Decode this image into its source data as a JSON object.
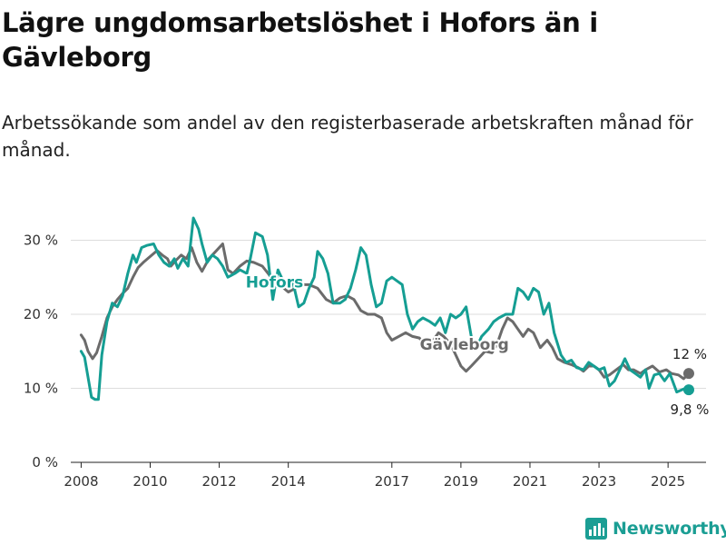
{
  "title": "Lägre ungdomsarbetslöshet i Hofors än i Gävleborg",
  "subtitle": "Arbetssökande som andel av den registerbaserade arbetskraften månad för månad.",
  "brand": {
    "name": "Newsworthy",
    "color": "#1b9e94",
    "icon": "bar-chart-logo-icon"
  },
  "chart_data": {
    "type": "line",
    "title": "Lägre ungdomsarbetslöshet i Hofors än i Gävleborg",
    "subtitle": "Arbetssökande som andel av den registerbaserade arbetskraften månad för månad.",
    "xlabel": "",
    "ylabel": "",
    "xlim": [
      2007.7,
      2026.1
    ],
    "ylim": [
      0,
      33
    ],
    "x_ticks": [
      {
        "value": 2008,
        "label": "2008"
      },
      {
        "value": 2010,
        "label": "2010"
      },
      {
        "value": 2012,
        "label": "2012"
      },
      {
        "value": 2014,
        "label": "2014"
      },
      {
        "value": 2017,
        "label": "2017"
      },
      {
        "value": 2019,
        "label": "2019"
      },
      {
        "value": 2021,
        "label": "2021"
      },
      {
        "value": 2023,
        "label": "2023"
      },
      {
        "value": 2025,
        "label": "2025"
      }
    ],
    "y_ticks": [
      {
        "value": 0,
        "label": "0 %"
      },
      {
        "value": 10,
        "label": "10 %"
      },
      {
        "value": 20,
        "label": "20 %"
      },
      {
        "value": 30,
        "label": "30 %"
      }
    ],
    "grid": true,
    "series": [
      {
        "name": "Gävleborg",
        "color": "#6b6b6b",
        "end_label": "12 %",
        "points": [
          [
            2008.0,
            17.2
          ],
          [
            2008.1,
            16.5
          ],
          [
            2008.2,
            15.0
          ],
          [
            2008.33,
            14.0
          ],
          [
            2008.45,
            14.8
          ],
          [
            2008.6,
            17.0
          ],
          [
            2008.75,
            19.5
          ],
          [
            2008.9,
            21.0
          ],
          [
            2009.05,
            22.0
          ],
          [
            2009.2,
            22.8
          ],
          [
            2009.35,
            23.5
          ],
          [
            2009.5,
            25.0
          ],
          [
            2009.65,
            26.3
          ],
          [
            2009.8,
            27.0
          ],
          [
            2010.0,
            27.8
          ],
          [
            2010.2,
            28.6
          ],
          [
            2010.35,
            28.0
          ],
          [
            2010.5,
            27.5
          ],
          [
            2010.6,
            26.5
          ],
          [
            2010.75,
            27.3
          ],
          [
            2010.9,
            28.0
          ],
          [
            2011.05,
            27.5
          ],
          [
            2011.2,
            29.0
          ],
          [
            2011.35,
            27.0
          ],
          [
            2011.5,
            25.8
          ],
          [
            2011.7,
            27.5
          ],
          [
            2011.9,
            28.5
          ],
          [
            2012.1,
            29.5
          ],
          [
            2012.25,
            26.0
          ],
          [
            2012.4,
            25.5
          ],
          [
            2012.6,
            26.5
          ],
          [
            2012.8,
            27.2
          ],
          [
            2013.0,
            27.0
          ],
          [
            2013.25,
            26.5
          ],
          [
            2013.5,
            25.0
          ],
          [
            2013.75,
            24.0
          ],
          [
            2014.0,
            23.0
          ],
          [
            2014.2,
            23.5
          ],
          [
            2014.4,
            24.0
          ],
          [
            2014.6,
            24.0
          ],
          [
            2014.85,
            23.5
          ],
          [
            2015.1,
            22.0
          ],
          [
            2015.3,
            21.5
          ],
          [
            2015.5,
            22.2
          ],
          [
            2015.7,
            22.5
          ],
          [
            2015.9,
            22.0
          ],
          [
            2016.1,
            20.5
          ],
          [
            2016.3,
            20.0
          ],
          [
            2016.5,
            20.0
          ],
          [
            2016.7,
            19.5
          ],
          [
            2016.85,
            17.5
          ],
          [
            2017.0,
            16.5
          ],
          [
            2017.2,
            17.0
          ],
          [
            2017.4,
            17.5
          ],
          [
            2017.6,
            17.0
          ],
          [
            2017.8,
            16.8
          ],
          [
            2018.0,
            15.5
          ],
          [
            2018.2,
            16.5
          ],
          [
            2018.35,
            17.5
          ],
          [
            2018.5,
            17.0
          ],
          [
            2018.7,
            16.0
          ],
          [
            2018.85,
            14.5
          ],
          [
            2019.0,
            13.0
          ],
          [
            2019.15,
            12.3
          ],
          [
            2019.3,
            13.0
          ],
          [
            2019.5,
            14.0
          ],
          [
            2019.7,
            15.0
          ],
          [
            2019.9,
            14.8
          ],
          [
            2020.05,
            16.0
          ],
          [
            2020.2,
            18.0
          ],
          [
            2020.35,
            19.5
          ],
          [
            2020.5,
            19.0
          ],
          [
            2020.65,
            18.0
          ],
          [
            2020.8,
            17.0
          ],
          [
            2020.95,
            18.0
          ],
          [
            2021.1,
            17.5
          ],
          [
            2021.3,
            15.5
          ],
          [
            2021.5,
            16.5
          ],
          [
            2021.65,
            15.5
          ],
          [
            2021.8,
            14.0
          ],
          [
            2022.0,
            13.5
          ],
          [
            2022.2,
            13.2
          ],
          [
            2022.4,
            12.8
          ],
          [
            2022.55,
            12.3
          ],
          [
            2022.7,
            13.0
          ],
          [
            2022.85,
            13.0
          ],
          [
            2023.0,
            12.5
          ],
          [
            2023.15,
            11.5
          ],
          [
            2023.3,
            11.8
          ],
          [
            2023.5,
            12.5
          ],
          [
            2023.7,
            13.2
          ],
          [
            2023.85,
            12.5
          ],
          [
            2024.0,
            12.5
          ],
          [
            2024.2,
            12.0
          ],
          [
            2024.35,
            12.5
          ],
          [
            2024.55,
            13.0
          ],
          [
            2024.75,
            12.2
          ],
          [
            2024.95,
            12.5
          ],
          [
            2025.1,
            12.0
          ],
          [
            2025.3,
            11.8
          ],
          [
            2025.45,
            11.3
          ],
          [
            2025.6,
            12.0
          ]
        ]
      },
      {
        "name": "Hofors",
        "color": "#159e93",
        "end_label": "9,8 %",
        "points": [
          [
            2008.0,
            15.0
          ],
          [
            2008.1,
            14.2
          ],
          [
            2008.2,
            11.5
          ],
          [
            2008.3,
            8.8
          ],
          [
            2008.4,
            8.5
          ],
          [
            2008.5,
            8.5
          ],
          [
            2008.6,
            14.5
          ],
          [
            2008.75,
            19.0
          ],
          [
            2008.9,
            21.5
          ],
          [
            2009.05,
            21.0
          ],
          [
            2009.2,
            22.5
          ],
          [
            2009.35,
            25.5
          ],
          [
            2009.5,
            28.0
          ],
          [
            2009.6,
            27.0
          ],
          [
            2009.75,
            29.0
          ],
          [
            2009.9,
            29.3
          ],
          [
            2010.1,
            29.5
          ],
          [
            2010.25,
            28.0
          ],
          [
            2010.4,
            27.0
          ],
          [
            2010.55,
            26.5
          ],
          [
            2010.7,
            27.5
          ],
          [
            2010.8,
            26.2
          ],
          [
            2010.95,
            27.5
          ],
          [
            2011.1,
            26.5
          ],
          [
            2011.25,
            33.0
          ],
          [
            2011.4,
            31.5
          ],
          [
            2011.5,
            29.5
          ],
          [
            2011.65,
            27.0
          ],
          [
            2011.8,
            28.0
          ],
          [
            2011.95,
            27.5
          ],
          [
            2012.1,
            26.5
          ],
          [
            2012.25,
            25.0
          ],
          [
            2012.45,
            25.5
          ],
          [
            2012.6,
            26.0
          ],
          [
            2012.8,
            25.5
          ],
          [
            2012.9,
            27.5
          ],
          [
            2013.05,
            31.0
          ],
          [
            2013.25,
            30.5
          ],
          [
            2013.4,
            28.0
          ],
          [
            2013.55,
            22.0
          ],
          [
            2013.7,
            26.0
          ],
          [
            2013.85,
            24.5
          ],
          [
            2014.0,
            24.5
          ],
          [
            2014.15,
            24.0
          ],
          [
            2014.3,
            21.0
          ],
          [
            2014.45,
            21.5
          ],
          [
            2014.6,
            23.5
          ],
          [
            2014.75,
            25.0
          ],
          [
            2014.85,
            28.5
          ],
          [
            2015.0,
            27.5
          ],
          [
            2015.15,
            25.5
          ],
          [
            2015.3,
            21.5
          ],
          [
            2015.5,
            21.5
          ],
          [
            2015.65,
            22.0
          ],
          [
            2015.8,
            23.5
          ],
          [
            2015.95,
            26.0
          ],
          [
            2016.1,
            29.0
          ],
          [
            2016.25,
            28.0
          ],
          [
            2016.4,
            24.0
          ],
          [
            2016.55,
            21.0
          ],
          [
            2016.7,
            21.5
          ],
          [
            2016.85,
            24.5
          ],
          [
            2017.0,
            25.0
          ],
          [
            2017.15,
            24.5
          ],
          [
            2017.3,
            24.0
          ],
          [
            2017.45,
            20.0
          ],
          [
            2017.6,
            18.0
          ],
          [
            2017.75,
            19.0
          ],
          [
            2017.9,
            19.5
          ],
          [
            2018.1,
            19.0
          ],
          [
            2018.25,
            18.5
          ],
          [
            2018.4,
            19.5
          ],
          [
            2018.55,
            17.5
          ],
          [
            2018.7,
            20.0
          ],
          [
            2018.85,
            19.5
          ],
          [
            2019.0,
            20.0
          ],
          [
            2019.15,
            21.0
          ],
          [
            2019.3,
            17.0
          ],
          [
            2019.45,
            15.5
          ],
          [
            2019.6,
            17.0
          ],
          [
            2019.8,
            18.0
          ],
          [
            2019.95,
            19.0
          ],
          [
            2020.1,
            19.5
          ],
          [
            2020.3,
            20.0
          ],
          [
            2020.5,
            20.0
          ],
          [
            2020.65,
            23.5
          ],
          [
            2020.8,
            23.0
          ],
          [
            2020.95,
            22.0
          ],
          [
            2021.1,
            23.5
          ],
          [
            2021.25,
            23.0
          ],
          [
            2021.4,
            20.0
          ],
          [
            2021.55,
            21.5
          ],
          [
            2021.7,
            17.5
          ],
          [
            2021.9,
            14.5
          ],
          [
            2022.05,
            13.5
          ],
          [
            2022.2,
            13.8
          ],
          [
            2022.35,
            12.8
          ],
          [
            2022.55,
            12.5
          ],
          [
            2022.7,
            13.5
          ],
          [
            2022.85,
            13.0
          ],
          [
            2023.0,
            12.5
          ],
          [
            2023.15,
            12.8
          ],
          [
            2023.3,
            10.3
          ],
          [
            2023.45,
            11.0
          ],
          [
            2023.6,
            12.5
          ],
          [
            2023.75,
            14.0
          ],
          [
            2023.9,
            12.5
          ],
          [
            2024.05,
            12.0
          ],
          [
            2024.2,
            11.5
          ],
          [
            2024.35,
            12.5
          ],
          [
            2024.45,
            10.0
          ],
          [
            2024.6,
            11.8
          ],
          [
            2024.75,
            12.0
          ],
          [
            2024.9,
            11.0
          ],
          [
            2025.05,
            12.0
          ],
          [
            2025.25,
            9.5
          ],
          [
            2025.4,
            9.8
          ],
          [
            2025.5,
            10.0
          ],
          [
            2025.6,
            9.8
          ]
        ]
      }
    ]
  }
}
